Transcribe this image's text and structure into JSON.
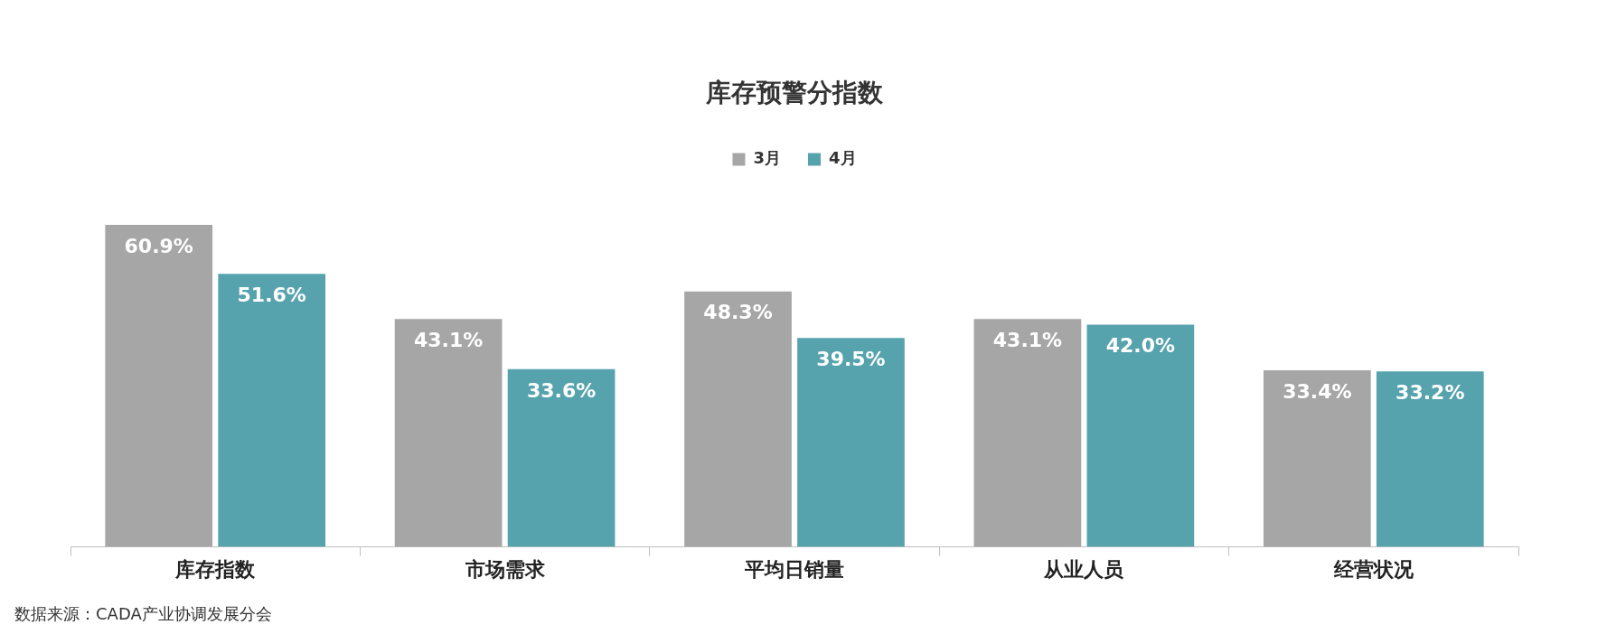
{
  "chart_data": {
    "type": "bar",
    "title": "库存预警分指数",
    "categories": [
      "库存指数",
      "市场需求",
      "平均日销量",
      "从业人员",
      "经营状况"
    ],
    "series": [
      {
        "name": "3月",
        "color": "#a6a6a6",
        "values": [
          60.9,
          43.1,
          48.3,
          43.1,
          33.4
        ],
        "value_labels": [
          "60.9%",
          "43.1%",
          "48.3%",
          "43.1%",
          "33.4%"
        ]
      },
      {
        "name": "4月",
        "color": "#56a3ae",
        "values": [
          51.6,
          33.6,
          39.5,
          42.0,
          33.2
        ],
        "value_labels": [
          "51.6%",
          "33.6%",
          "39.5%",
          "42.0%",
          "33.2%"
        ]
      }
    ],
    "legend": "top",
    "grid": false,
    "annotations": [
      "数据来源：CADA产业协调发展分会"
    ]
  }
}
